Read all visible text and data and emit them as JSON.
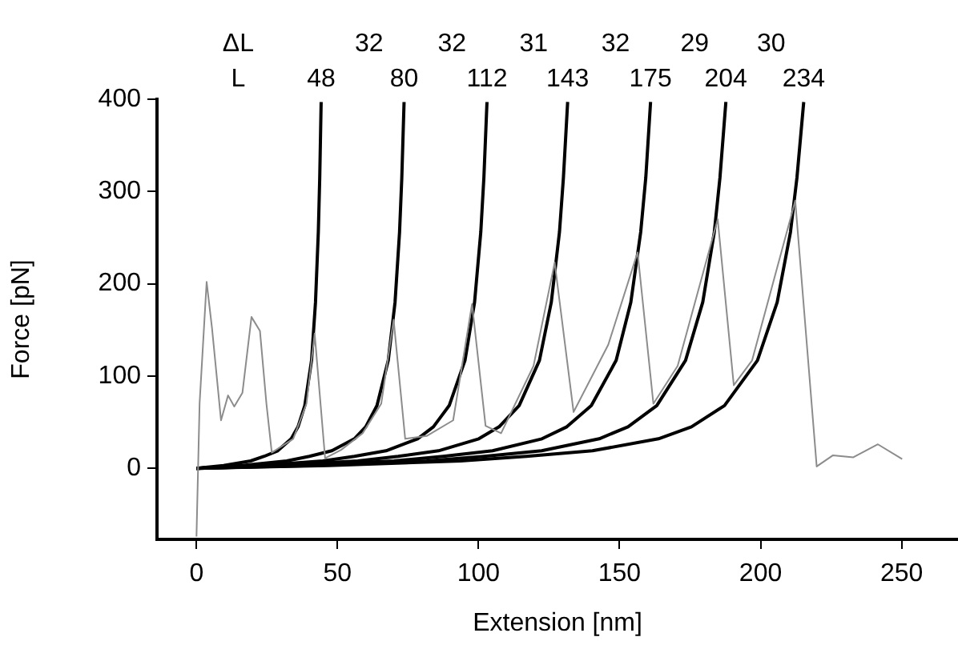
{
  "chart_data": {
    "type": "line",
    "xlabel": "Extension [nm]",
    "ylabel": "Force [pN]",
    "xlim": [
      -14,
      270
    ],
    "xticks": [
      0,
      50,
      100,
      150,
      200,
      250
    ],
    "ylim": [
      -77,
      400
    ],
    "yticks": [
      0,
      100,
      200,
      300,
      400
    ],
    "legend": false,
    "marker": "none",
    "line_style": "solid",
    "series": [
      {
        "color": "#8c8c8c",
        "x": [
          0,
          1.1,
          3.6,
          5.5,
          8.7,
          11.2,
          13.4,
          16.3,
          19.5,
          22.5,
          24.8,
          26.7,
          34.3,
          39,
          41.9,
          45.6,
          51.3,
          58.9,
          65.5,
          69.9,
          74,
          81.6,
          91,
          97.7,
          102.5,
          108,
          119.5,
          127,
          133.7,
          146,
          156.4,
          162,
          170.6,
          184.8,
          190.5,
          197,
          212.3,
          219.9,
          225.6,
          232.9,
          241.6,
          250.2
        ],
        "values": [
          -74,
          70,
          202,
          152,
          52,
          79,
          67,
          82,
          164,
          149,
          70,
          17,
          32,
          70,
          146,
          11,
          20,
          38,
          70,
          161,
          32,
          35,
          52,
          178,
          46,
          38,
          111,
          223,
          61,
          134,
          234,
          70,
          111,
          270,
          90,
          117,
          290,
          2,
          14,
          12,
          26,
          10
        ]
      },
      {
        "color": "#000000",
        "x": [
          0,
          9.6,
          19.2,
          24,
          28.8,
          33.6,
          36,
          38.4,
          40.8,
          42.2,
          43.2,
          43.7,
          44.2
        ],
        "values": [
          0,
          3,
          8,
          13,
          19,
          32,
          45,
          68,
          117,
          180,
          256,
          315,
          397
        ]
      },
      {
        "color": "#000000",
        "x": [
          0,
          16,
          32,
          40,
          48,
          56,
          60,
          64,
          68,
          70.4,
          72,
          72.8,
          73.6
        ],
        "values": [
          0,
          3,
          8,
          13,
          19,
          32,
          45,
          68,
          117,
          180,
          256,
          315,
          397
        ]
      },
      {
        "color": "#000000",
        "x": [
          0,
          22.4,
          44.8,
          56,
          67.2,
          78.4,
          84,
          89.6,
          95.2,
          98.6,
          100.8,
          101.9,
          103
        ],
        "values": [
          0,
          3,
          8,
          13,
          19,
          32,
          45,
          68,
          117,
          180,
          256,
          315,
          397
        ]
      },
      {
        "color": "#000000",
        "x": [
          0,
          28.6,
          57.2,
          71.5,
          85.8,
          100.1,
          107.3,
          114.4,
          121.6,
          125.8,
          128.7,
          130.1,
          131.6
        ],
        "values": [
          0,
          3,
          8,
          13,
          19,
          32,
          45,
          68,
          117,
          180,
          256,
          315,
          397
        ]
      },
      {
        "color": "#000000",
        "x": [
          0,
          35,
          70,
          87.5,
          105,
          122.5,
          131.3,
          140,
          148.8,
          154,
          157.5,
          159.3,
          161
        ],
        "values": [
          0,
          3,
          8,
          13,
          19,
          32,
          45,
          68,
          117,
          180,
          256,
          315,
          397
        ]
      },
      {
        "color": "#000000",
        "x": [
          0,
          40.8,
          81.6,
          102,
          122.4,
          142.8,
          153,
          163.2,
          173.4,
          179.5,
          183.6,
          185.6,
          187.7
        ],
        "values": [
          0,
          3,
          8,
          13,
          19,
          32,
          45,
          68,
          117,
          180,
          256,
          315,
          397
        ]
      },
      {
        "color": "#000000",
        "x": [
          0,
          46.8,
          93.6,
          117,
          140.4,
          163.8,
          175.5,
          187.2,
          198.9,
          205.9,
          210.6,
          212.9,
          215.3
        ],
        "values": [
          0,
          3,
          8,
          13,
          19,
          32,
          45,
          68,
          117,
          180,
          256,
          315,
          397
        ]
      }
    ],
    "annotations": [
      {
        "text": "48",
        "x": 44.2,
        "y": 400
      },
      {
        "text": "80",
        "x": 73.6,
        "y": 400
      },
      {
        "text": "112",
        "x": 103,
        "y": 400
      },
      {
        "text": "143",
        "x": 131.6,
        "y": 400
      },
      {
        "text": "175",
        "x": 161,
        "y": 400
      },
      {
        "text": "204",
        "x": 187.7,
        "y": 400
      },
      {
        "text": "234",
        "x": 215.3,
        "y": 400
      },
      "ΔL",
      "L",
      "32",
      "32",
      "31",
      "32",
      "29",
      "30"
    ]
  }
}
